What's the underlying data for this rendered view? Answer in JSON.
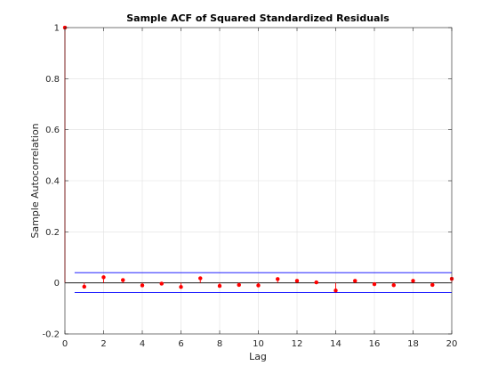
{
  "chart_data": {
    "type": "scatter",
    "title": "Sample ACF of Squared Standardized Residuals",
    "xlabel": "Lag",
    "ylabel": "Sample Autocorrelation",
    "xlim": [
      0,
      20
    ],
    "ylim": [
      -0.2,
      1
    ],
    "x_ticks": [
      0,
      2,
      4,
      6,
      8,
      10,
      12,
      14,
      16,
      18,
      20
    ],
    "y_ticks": [
      -0.2,
      0,
      0.2,
      0.4,
      0.6,
      0.8,
      1
    ],
    "x_tick_labels": [
      "0",
      "2",
      "4",
      "6",
      "8",
      "10",
      "12",
      "14",
      "16",
      "18",
      "20"
    ],
    "y_tick_labels": [
      "-0.2",
      "0",
      "0.2",
      "0.4",
      "0.6",
      "0.8",
      "1"
    ],
    "grid": true,
    "confidence_bounds": [
      0.04,
      -0.038
    ],
    "series": [
      {
        "x": [
          0,
          1,
          2,
          3,
          4,
          5,
          6,
          7,
          8,
          9,
          10,
          11,
          12,
          13,
          14,
          15,
          16,
          17,
          18,
          19,
          20
        ],
        "values": [
          1.0,
          -0.015,
          0.022,
          0.011,
          -0.01,
          -0.003,
          -0.016,
          0.018,
          -0.012,
          -0.008,
          -0.01,
          0.015,
          0.008,
          0.002,
          -0.03,
          0.008,
          -0.005,
          -0.009,
          0.008,
          -0.008,
          0.016
        ]
      }
    ],
    "colors": {
      "stem": "#ff0000",
      "marker": "#ff0000",
      "bounds": "#0000ff",
      "zero_line": "#000000",
      "axis": "#262626",
      "grid": "#dfdfdf"
    }
  }
}
